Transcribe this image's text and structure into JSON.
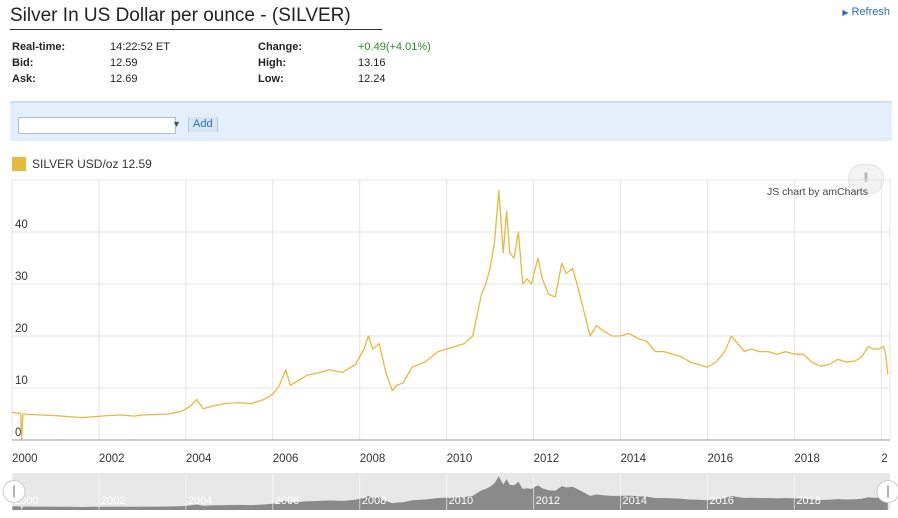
{
  "header": {
    "title": "Silver In US Dollar per ounce - (SILVER)",
    "refresh_label": "Refresh"
  },
  "quote": {
    "realtime_label": "Real-time:",
    "realtime_value": "14:22:52 ET",
    "bid_label": "Bid:",
    "bid_value": "12.59",
    "ask_label": "Ask:",
    "ask_value": "12.69",
    "change_label": "Change:",
    "change_value": "+0.49(+4.01%)",
    "high_label": "High:",
    "high_value": "13.16",
    "low_label": "Low:",
    "low_value": "12.24"
  },
  "toolbar": {
    "search_value": "",
    "add_label": "Add"
  },
  "legend": {
    "label": "SILVER USD/oz 12.59"
  },
  "credit": "JS chart by amCharts",
  "colors": {
    "series": "#e9b93d",
    "nav_fill": "#8a8a8a",
    "nav_bg": "#e8e8e8",
    "grid": "#e4e4e4",
    "up": "#2b8a2b"
  },
  "chart_data": {
    "type": "line",
    "title": "",
    "xlabel": "",
    "ylabel": "",
    "xlim": [
      2000.0,
      2020.2
    ],
    "ylim": [
      0,
      50
    ],
    "y_ticks": [
      0,
      10,
      20,
      30,
      40
    ],
    "x_tick_labels": [
      "2000",
      "2002",
      "2004",
      "2006",
      "2008",
      "2010",
      "2012",
      "2014",
      "2016",
      "2018",
      "2"
    ],
    "nav_tick_labels": [
      "2000",
      "2002",
      "2004",
      "2006",
      "2008",
      "2010",
      "2012",
      "2014",
      "2016",
      "2018"
    ],
    "grid": true,
    "legend_position": "top-left",
    "series": [
      {
        "name": "SILVER USD/oz",
        "x": [
          2000.0,
          2000.1,
          2000.2,
          2000.22,
          2000.25,
          2000.4,
          2000.7,
          2001.0,
          2001.3,
          2001.6,
          2001.9,
          2002.2,
          2002.5,
          2002.8,
          2003.0,
          2003.3,
          2003.6,
          2003.9,
          2004.1,
          2004.25,
          2004.4,
          2004.6,
          2004.9,
          2005.2,
          2005.5,
          2005.8,
          2006.0,
          2006.15,
          2006.3,
          2006.4,
          2006.6,
          2006.8,
          2007.0,
          2007.3,
          2007.6,
          2007.9,
          2008.1,
          2008.2,
          2008.3,
          2008.45,
          2008.6,
          2008.75,
          2008.85,
          2009.0,
          2009.2,
          2009.5,
          2009.8,
          2010.0,
          2010.2,
          2010.4,
          2010.6,
          2010.8,
          2010.9,
          2011.0,
          2011.1,
          2011.2,
          2011.3,
          2011.38,
          2011.45,
          2011.55,
          2011.65,
          2011.75,
          2011.85,
          2011.95,
          2012.1,
          2012.2,
          2012.35,
          2012.5,
          2012.65,
          2012.75,
          2012.9,
          2013.0,
          2013.15,
          2013.3,
          2013.45,
          2013.6,
          2013.8,
          2014.0,
          2014.2,
          2014.4,
          2014.6,
          2014.8,
          2015.0,
          2015.2,
          2015.4,
          2015.6,
          2015.8,
          2016.0,
          2016.2,
          2016.4,
          2016.55,
          2016.7,
          2016.85,
          2017.0,
          2017.2,
          2017.4,
          2017.6,
          2017.8,
          2018.0,
          2018.2,
          2018.4,
          2018.6,
          2018.8,
          2019.0,
          2019.2,
          2019.4,
          2019.55,
          2019.7,
          2019.8,
          2019.95,
          2020.05,
          2020.1,
          2020.15
        ],
        "y": [
          5.3,
          5.2,
          5.1,
          0.2,
          5.0,
          4.9,
          4.8,
          4.7,
          4.5,
          4.3,
          4.5,
          4.7,
          4.8,
          4.6,
          4.8,
          4.9,
          5.0,
          5.5,
          6.5,
          7.8,
          6.0,
          6.5,
          7.0,
          7.2,
          7.0,
          7.8,
          8.8,
          10.5,
          13.5,
          10.5,
          11.5,
          12.5,
          12.8,
          13.5,
          13.0,
          14.5,
          17.5,
          20.0,
          17.5,
          18.5,
          13.0,
          9.5,
          10.5,
          11.0,
          14.0,
          15.0,
          17.0,
          17.5,
          18.0,
          18.5,
          20.0,
          28.0,
          30.0,
          33.0,
          38.0,
          48.0,
          36.0,
          44.0,
          36.0,
          35.0,
          40.0,
          30.0,
          31.0,
          30.0,
          35.0,
          31.0,
          28.0,
          27.5,
          34.0,
          32.0,
          33.0,
          30.0,
          25.0,
          20.0,
          22.0,
          21.0,
          20.0,
          20.0,
          20.5,
          19.5,
          19.0,
          17.0,
          17.0,
          16.5,
          16.0,
          15.0,
          14.5,
          14.0,
          15.0,
          17.0,
          20.0,
          18.5,
          17.0,
          17.5,
          17.0,
          17.0,
          16.5,
          17.0,
          16.5,
          16.5,
          15.0,
          14.2,
          14.5,
          15.5,
          15.0,
          15.2,
          16.0,
          18.0,
          17.5,
          17.5,
          18.0,
          16.5,
          12.6
        ]
      }
    ]
  }
}
